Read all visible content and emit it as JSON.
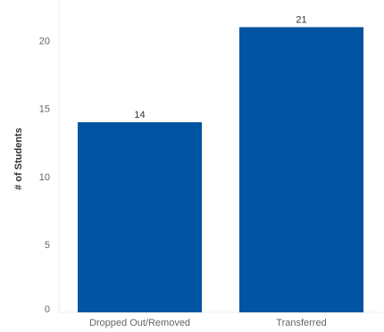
{
  "chart_data": {
    "type": "bar",
    "categories": [
      "Dropped Out/Removed",
      "Transferred"
    ],
    "values": [
      14,
      21
    ],
    "data_labels": [
      "14",
      "21"
    ],
    "title": "",
    "xlabel": "",
    "ylabel": "# of Students",
    "ylim": [
      0,
      23
    ],
    "yticks": [
      0,
      5,
      10,
      15,
      20
    ],
    "ytick_labels": [
      "0",
      "5",
      "10",
      "15",
      "20"
    ],
    "grid": false,
    "legend": "none",
    "colors": {
      "bar": "#0054A1",
      "axis_text": "#666666",
      "label_text": "#333333",
      "axis_line": "#e6e6e6"
    }
  }
}
